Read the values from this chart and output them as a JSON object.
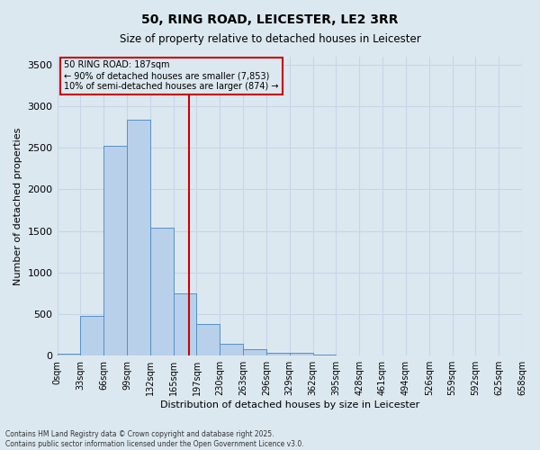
{
  "title": "50, RING ROAD, LEICESTER, LE2 3RR",
  "subtitle": "Size of property relative to detached houses in Leicester",
  "xlabel": "Distribution of detached houses by size in Leicester",
  "ylabel": "Number of detached properties",
  "bar_values": [
    20,
    475,
    2520,
    2840,
    1540,
    750,
    380,
    145,
    75,
    35,
    30,
    10,
    5,
    2,
    1,
    0,
    0,
    0,
    0,
    0
  ],
  "bin_labels": [
    "0sqm",
    "33sqm",
    "66sqm",
    "99sqm",
    "132sqm",
    "165sqm",
    "197sqm",
    "230sqm",
    "263sqm",
    "296sqm",
    "329sqm",
    "362sqm",
    "395sqm",
    "428sqm",
    "461sqm",
    "494sqm",
    "526sqm",
    "559sqm",
    "592sqm",
    "625sqm",
    "658sqm"
  ],
  "bar_color": "#b8d0ea",
  "bar_edge_color": "#5590c8",
  "vline_color": "#cc0000",
  "annotation_text": "50 RING ROAD: 187sqm\n← 90% of detached houses are smaller (7,853)\n10% of semi-detached houses are larger (874) →",
  "annotation_box_color": "#cc0000",
  "ylim": [
    0,
    3600
  ],
  "yticks": [
    0,
    500,
    1000,
    1500,
    2000,
    2500,
    3000,
    3500
  ],
  "grid_color": "#c8d4e8",
  "background_color": "#dce8f0",
  "footer_line1": "Contains HM Land Registry data © Crown copyright and database right 2025.",
  "footer_line2": "Contains public sector information licensed under the Open Government Licence v3.0."
}
